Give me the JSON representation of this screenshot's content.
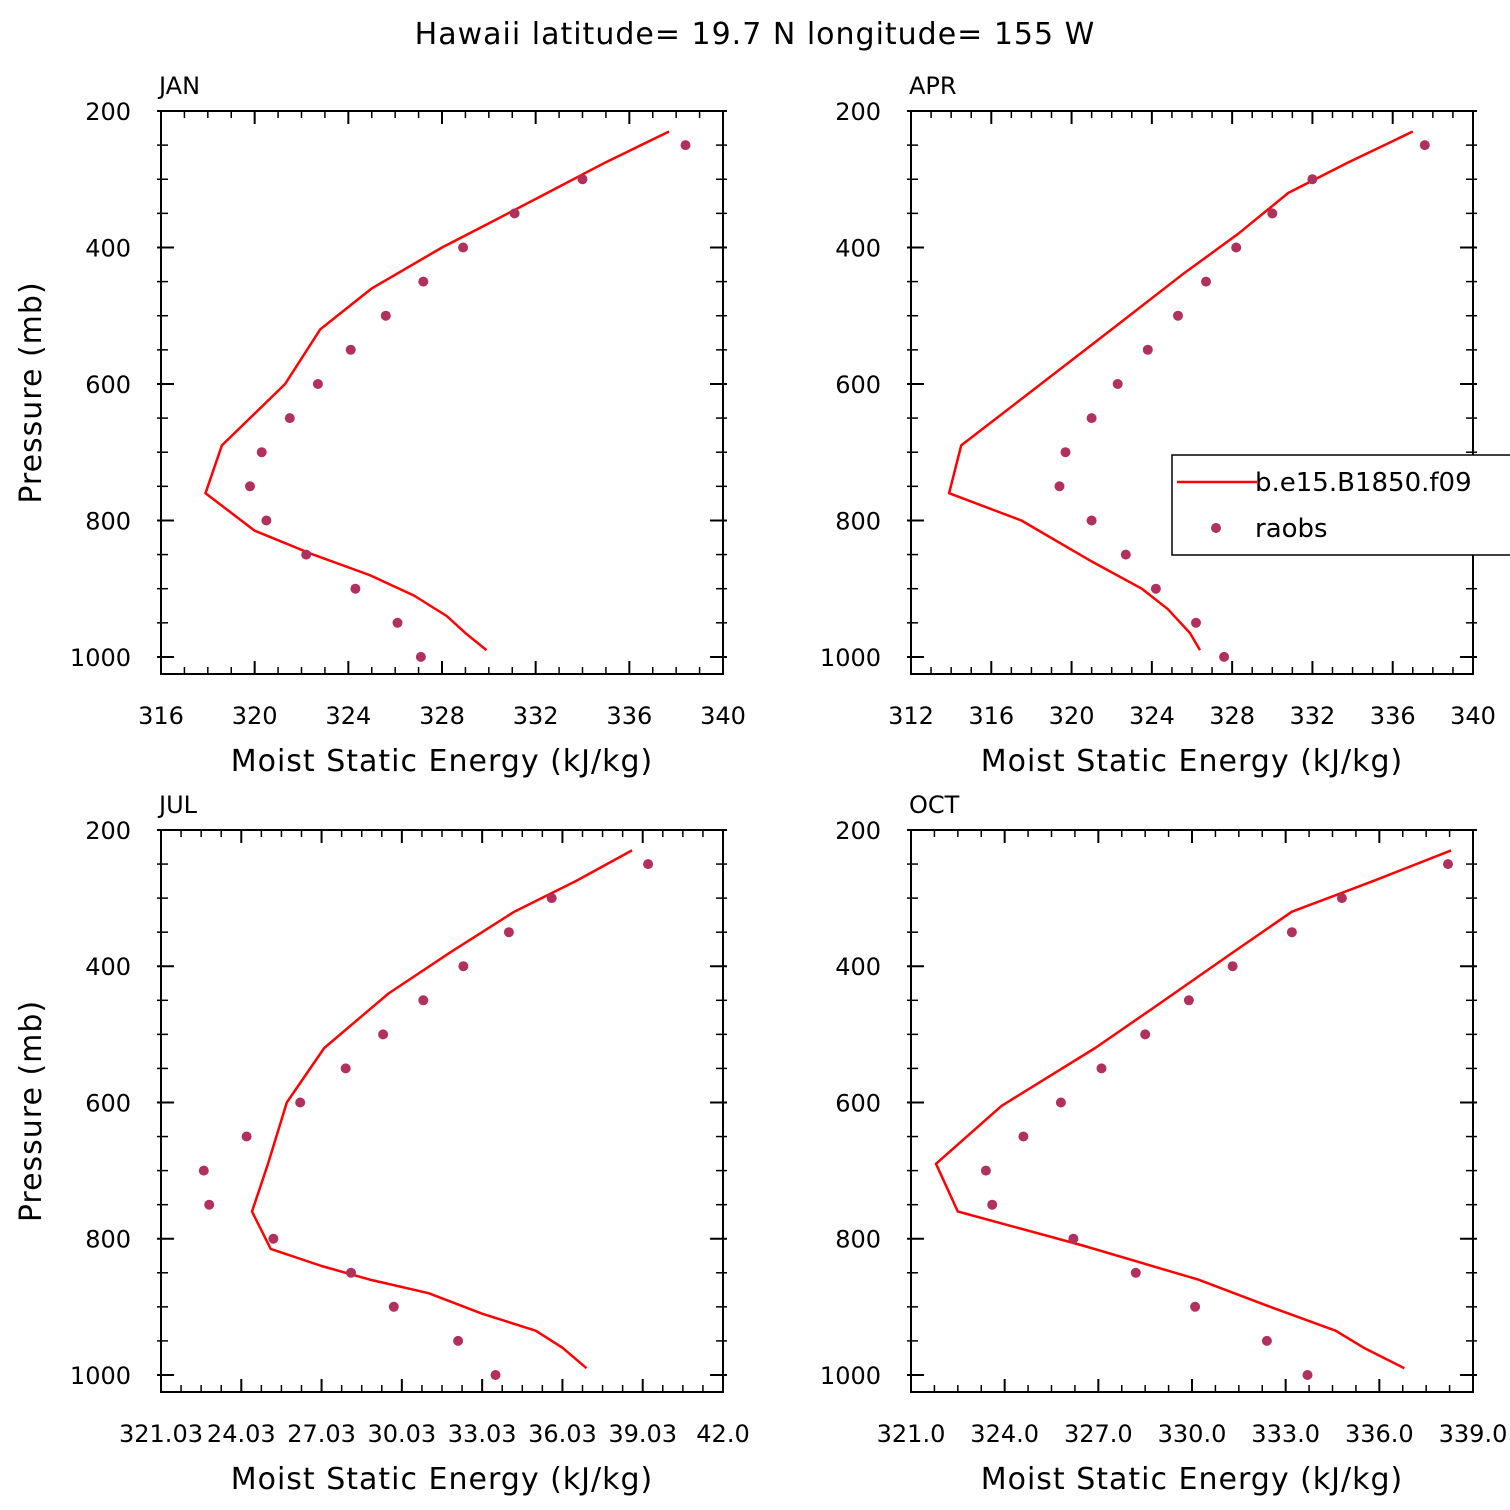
{
  "title": "Hawaii  latitude= 19.7 N longitude= 155 W",
  "chart_data": [
    {
      "type": "line",
      "title": "JAN",
      "xlabel": "Moist Static Energy (kJ/kg)",
      "ylabel": "Pressure (mb)",
      "xlim": [
        316,
        340
      ],
      "ylim": [
        200,
        1025
      ],
      "x_ticks": [
        "316",
        "320",
        "324",
        "328",
        "332",
        "336",
        "340"
      ],
      "y_ticks": [
        "200",
        "400",
        "600",
        "800",
        "1000"
      ],
      "series": [
        {
          "name": "b.e15.B1850.f09",
          "style": "line",
          "color": "#ff0000",
          "x": [
            337.7,
            335.0,
            332.5,
            329.7,
            328.0,
            325.0,
            322.8,
            321.3,
            318.6,
            317.9,
            320.0,
            322.5,
            324.9,
            326.8,
            328.2,
            329.0,
            329.9
          ],
          "y": [
            230,
            275,
            320,
            370,
            400,
            460,
            520,
            600,
            690,
            760,
            815,
            850,
            880,
            910,
            940,
            965,
            990
          ]
        },
        {
          "name": "raobs",
          "style": "marker",
          "color": "#b0305e",
          "x": [
            338.4,
            334.0,
            331.1,
            328.9,
            327.2,
            325.6,
            324.1,
            322.7,
            321.5,
            320.3,
            319.8,
            320.5,
            322.2,
            324.3,
            326.1,
            327.1
          ],
          "y": [
            250,
            300,
            350,
            400,
            450,
            500,
            550,
            600,
            650,
            700,
            750,
            800,
            850,
            900,
            950,
            1000
          ]
        }
      ]
    },
    {
      "type": "line",
      "title": "APR",
      "xlabel": "Moist Static Energy (kJ/kg)",
      "ylabel": "",
      "xlim": [
        312,
        340
      ],
      "ylim": [
        200,
        1025
      ],
      "x_ticks": [
        "312",
        "316",
        "320",
        "324",
        "328",
        "332",
        "336",
        "340"
      ],
      "y_ticks": [
        "200",
        "400",
        "600",
        "800",
        "1000"
      ],
      "series": [
        {
          "name": "b.e15.B1850.f09",
          "style": "line",
          "color": "#ff0000",
          "x": [
            337.0,
            333.8,
            330.8,
            328.3,
            325.5,
            322.0,
            314.5,
            313.9,
            317.5,
            321.0,
            323.5,
            324.8,
            325.9,
            326.4
          ],
          "y": [
            230,
            275,
            320,
            380,
            440,
            520,
            690,
            760,
            800,
            860,
            900,
            930,
            965,
            990
          ]
        },
        {
          "name": "raobs",
          "style": "marker",
          "color": "#b0305e",
          "x": [
            337.6,
            332.0,
            330.0,
            328.2,
            326.7,
            325.3,
            323.8,
            322.3,
            321.0,
            319.7,
            319.4,
            321.0,
            322.7,
            324.2,
            326.2,
            327.6
          ],
          "y": [
            250,
            300,
            350,
            400,
            450,
            500,
            550,
            600,
            650,
            700,
            750,
            800,
            850,
            900,
            950,
            1000
          ]
        }
      ]
    },
    {
      "type": "line",
      "title": "JUL",
      "xlabel": "Moist Static Energy (kJ/kg)",
      "ylabel": "Pressure (mb)",
      "xlim": [
        321.0,
        342.0
      ],
      "ylim": [
        200,
        1025
      ],
      "x_ticks": [
        "321.03",
        "24.03",
        "27.03",
        "30.03",
        "33.03",
        "36.03",
        "39.03",
        "42.0"
      ],
      "y_ticks": [
        "200",
        "400",
        "600",
        "800",
        "1000"
      ],
      "series": [
        {
          "name": "b.e15.B1850.f09",
          "style": "line",
          "color": "#ff0000",
          "x": [
            338.6,
            336.5,
            334.2,
            331.8,
            329.5,
            327.1,
            325.7,
            325.0,
            324.4,
            325.1,
            327.0,
            328.8,
            331.0,
            333.0,
            335.0,
            336.0,
            336.9
          ],
          "y": [
            230,
            275,
            320,
            380,
            440,
            520,
            600,
            690,
            760,
            815,
            840,
            860,
            880,
            910,
            935,
            960,
            990
          ]
        },
        {
          "name": "raobs",
          "style": "marker",
          "color": "#b0305e",
          "x": [
            339.2,
            335.6,
            334.0,
            332.3,
            330.8,
            329.3,
            327.9,
            326.2,
            324.2,
            322.6,
            322.8,
            325.2,
            328.1,
            329.7,
            332.1,
            333.5
          ],
          "y": [
            250,
            300,
            350,
            400,
            450,
            500,
            550,
            600,
            650,
            700,
            750,
            800,
            850,
            900,
            950,
            1000
          ]
        }
      ]
    },
    {
      "type": "line",
      "title": "OCT",
      "xlabel": "Moist Static Energy (kJ/kg)",
      "ylabel": "",
      "xlim": [
        321.0,
        339.0
      ],
      "ylim": [
        200,
        1025
      ],
      "x_ticks": [
        "321.0",
        "324.0",
        "327.0",
        "330.0",
        "333.0",
        "336.0",
        "339.0"
      ],
      "y_ticks": [
        "200",
        "400",
        "600",
        "800",
        "1000"
      ],
      "series": [
        {
          "name": "b.e15.B1850.f09",
          "style": "line",
          "color": "#ff0000",
          "x": [
            338.3,
            335.8,
            333.2,
            331.3,
            328.8,
            326.9,
            323.9,
            321.8,
            322.5,
            326.5,
            330.2,
            332.5,
            334.6,
            335.5,
            336.8
          ],
          "y": [
            230,
            275,
            320,
            380,
            460,
            520,
            605,
            690,
            760,
            810,
            860,
            900,
            935,
            960,
            990
          ]
        },
        {
          "name": "raobs",
          "style": "marker",
          "color": "#b0305e",
          "x": [
            338.2,
            334.8,
            333.2,
            331.3,
            329.9,
            328.5,
            327.1,
            325.8,
            324.6,
            323.4,
            323.6,
            326.2,
            328.2,
            330.1,
            332.4,
            333.7
          ],
          "y": [
            250,
            300,
            350,
            400,
            450,
            500,
            550,
            600,
            650,
            700,
            750,
            800,
            850,
            900,
            950,
            1000
          ]
        }
      ]
    }
  ],
  "legend": {
    "model_label": "b.e15.B1850.f09",
    "obs_label": "raobs"
  }
}
